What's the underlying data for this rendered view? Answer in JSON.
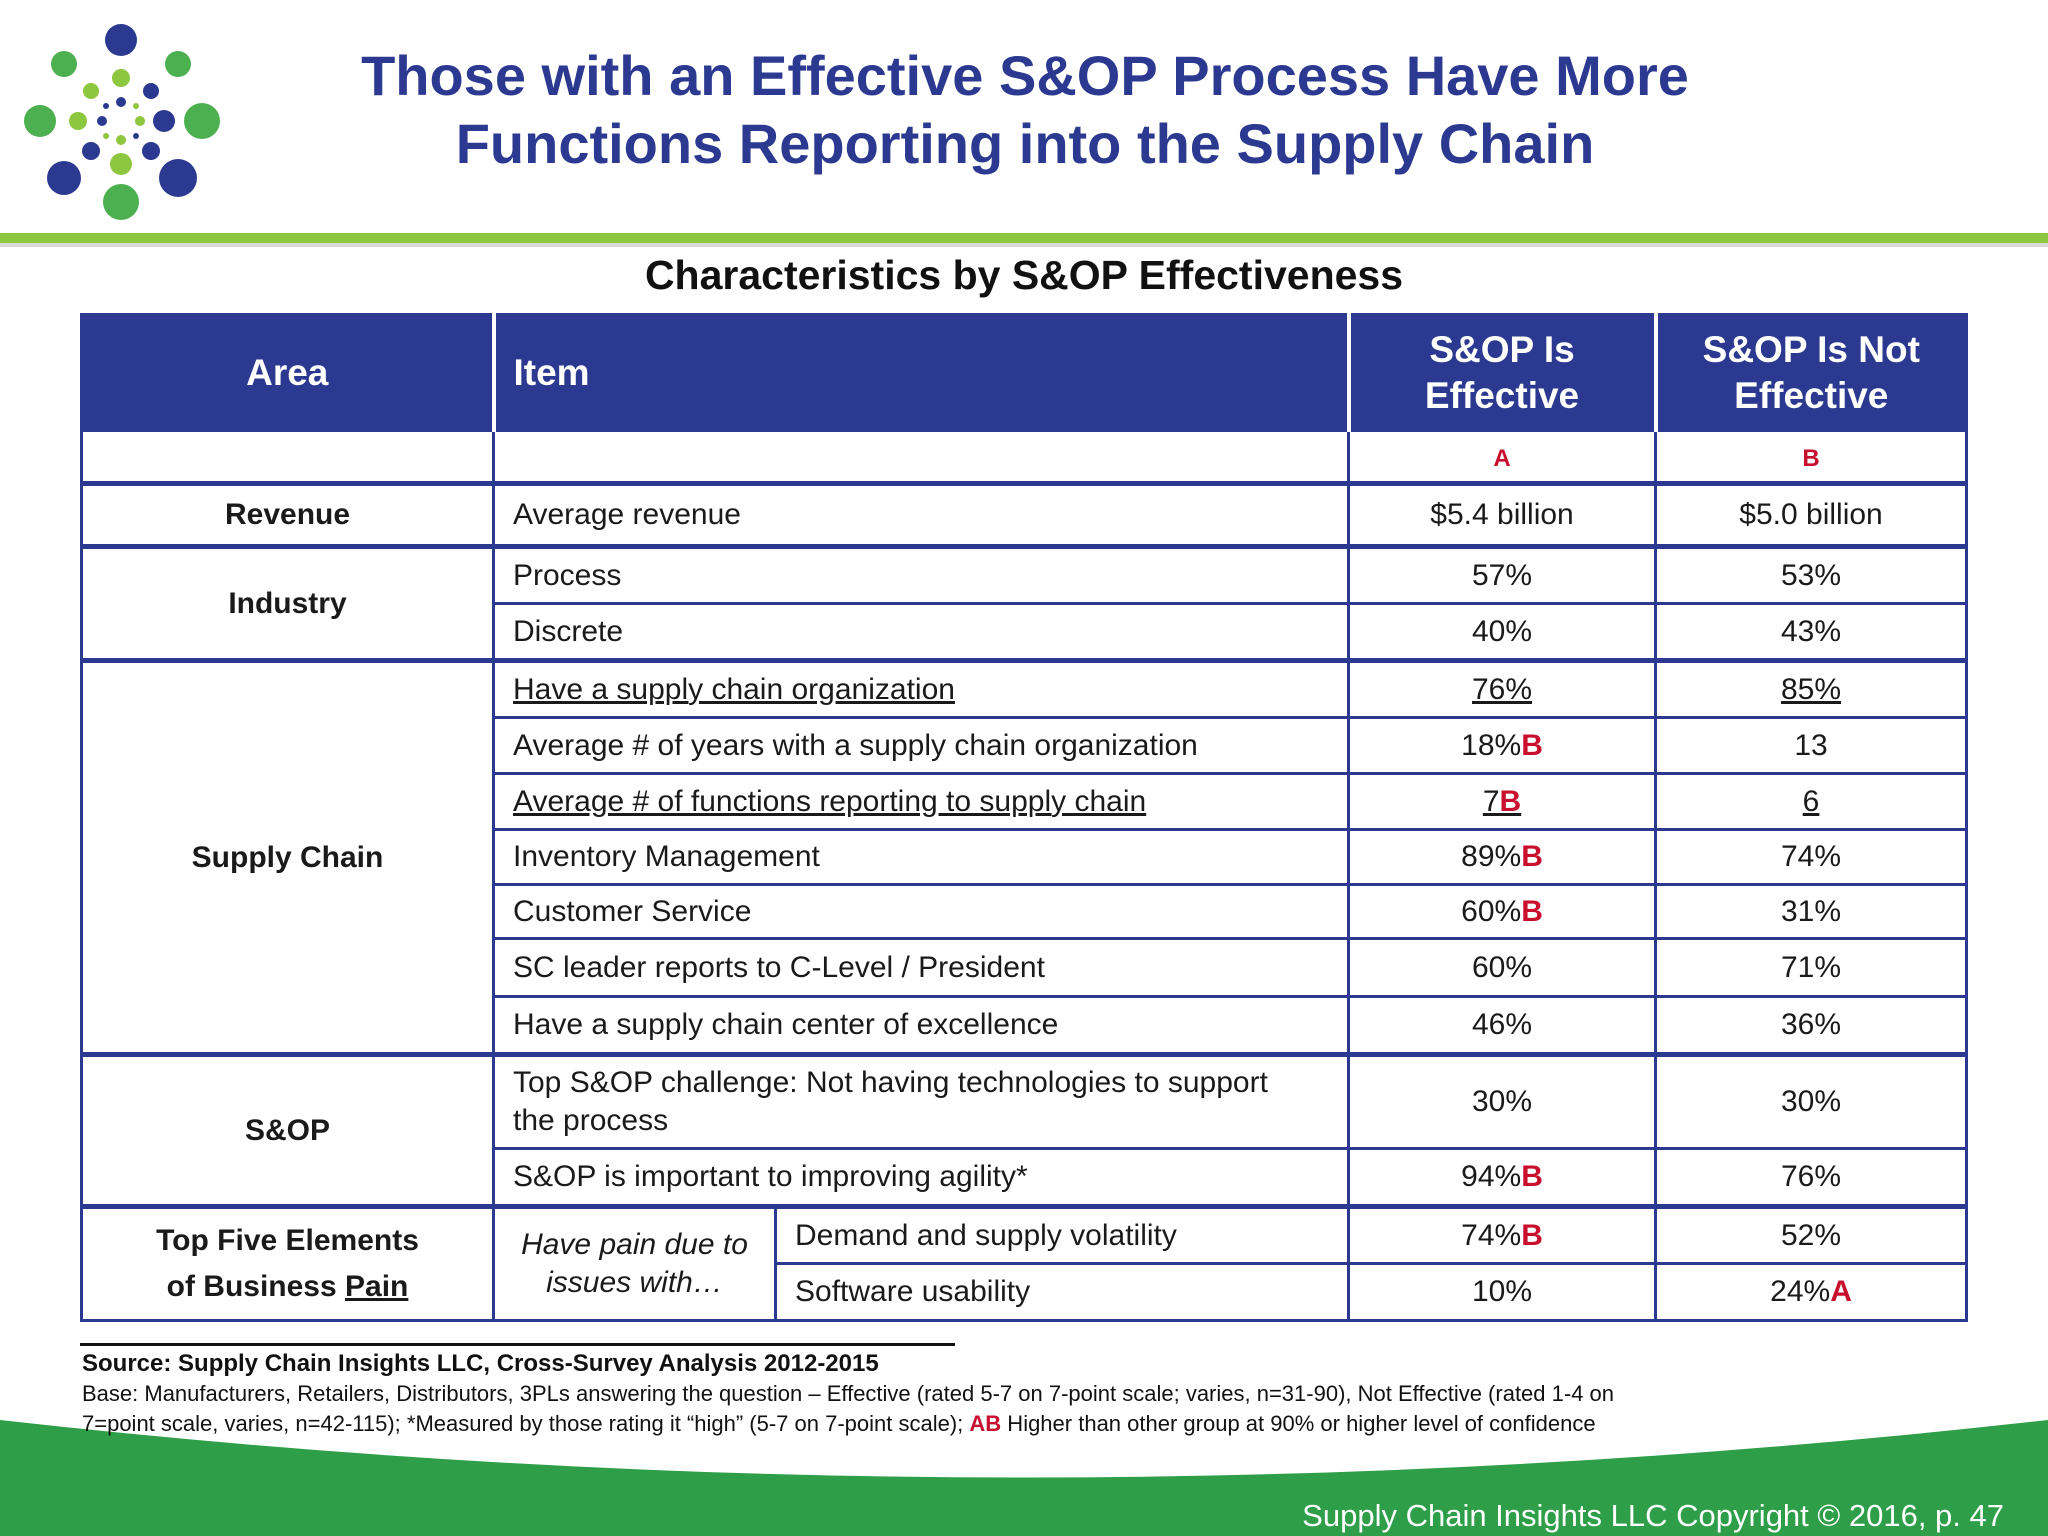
{
  "header": {
    "title_line1": "Those with an Effective S&OP Process Have More",
    "title_line2": "Functions Reporting into the Supply Chain"
  },
  "table_title": "Characteristics by S&OP Effectiveness",
  "columns": {
    "area": "Area",
    "item": "Item",
    "effective_line1": "S&OP Is",
    "effective_line2": "Effective",
    "not_effective_line1": "S&OP Is Not",
    "not_effective_line2": "Effective",
    "effective_letter": "A",
    "not_effective_letter": "B"
  },
  "areas": {
    "revenue": "Revenue",
    "industry": "Industry",
    "supply_chain": "Supply Chain",
    "sop": "S&OP",
    "pain_line1": "Top Five Elements",
    "pain_line2a": "of Business ",
    "pain_line2b": "Pain"
  },
  "rows": {
    "revenue": {
      "item": "Average revenue",
      "a": "$5.4 billion",
      "b": "$5.0 billion"
    },
    "process": {
      "item": "Process",
      "a": "57%",
      "b": "53%"
    },
    "discrete": {
      "item": "Discrete",
      "a": "40%",
      "b": "43%"
    },
    "sc_org": {
      "item": "Have a supply chain organization",
      "a": "76%",
      "b": "85%"
    },
    "sc_years": {
      "item": "Average # of years with a supply chain organization",
      "a": "18%",
      "a_sig": "B",
      "b": "13"
    },
    "sc_functions": {
      "item": "Average # of functions reporting to supply chain",
      "a": "7",
      "a_sig": "B",
      "b": "6"
    },
    "inventory": {
      "item": "Inventory Management",
      "a": "89%",
      "a_sig": "B",
      "b": "74%"
    },
    "customer": {
      "item": "Customer Service",
      "a": "60%",
      "a_sig": "B",
      "b": "31%"
    },
    "sc_leader": {
      "item": "SC leader reports to C-Level / President",
      "a": "60%",
      "b": "71%"
    },
    "sc_coe": {
      "item": "Have a supply chain center of excellence",
      "a": "46%",
      "b": "36%"
    },
    "sop_challenge": {
      "item_line1": "Top S&OP challenge:  Not having technologies to support",
      "item_line2": "the process",
      "a": "30%",
      "b": "30%"
    },
    "sop_agility": {
      "item": "S&OP is important to improving agility*",
      "a": "94%",
      "a_sig": "B",
      "b": "76%"
    },
    "pain_label_line1": "Have pain due to",
    "pain_label_line2": "issues with…",
    "volatility": {
      "item": "Demand and supply volatility",
      "a": "74%",
      "a_sig": "B",
      "b": "52%"
    },
    "usability": {
      "item": "Software usability",
      "a": "10%",
      "b": "24%",
      "b_sig": "A"
    }
  },
  "notes": {
    "source": "Source:  Supply Chain Insights LLC, Cross-Survey Analysis 2012-2015",
    "base_line1": "Base:  Manufacturers, Retailers, Distributors, 3PLs answering the question – Effective (rated 5-7 on 7-point scale; varies, n=31-90), Not Effective (rated 1-4 on",
    "base_line2a": "7=point scale, varies,  n=42-115); *Measured by those rating it “high” (5-7 on 7-point scale); ",
    "base_ab": "AB",
    "base_line2b": " Higher than other group at 90% or higher level of confidence"
  },
  "footer": {
    "copyright": "Supply Chain Insights LLC Copyright © 2016, p. 47"
  },
  "colors": {
    "brand_blue": "#2b3990",
    "brand_green": "#8dc63f",
    "footer_green": "#2e9e48",
    "significance_red": "#c8102e"
  }
}
